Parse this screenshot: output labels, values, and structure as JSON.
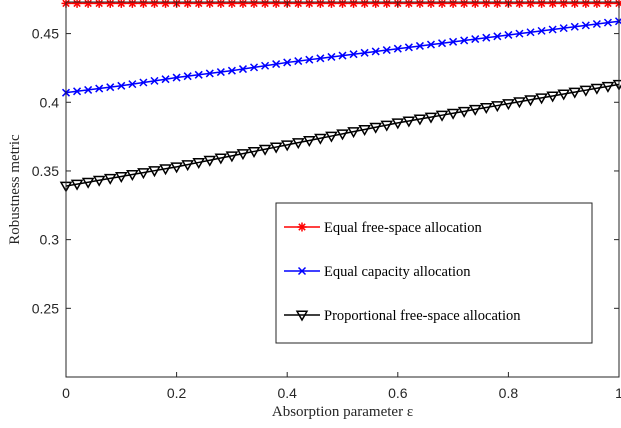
{
  "chart_data": {
    "type": "line",
    "title": "",
    "xlabel": "Absorption parameter ε",
    "ylabel": "Robustness metric",
    "xlim": [
      0,
      1
    ],
    "ylim": [
      0.2,
      0.473
    ],
    "x_ticks": [
      0,
      0.2,
      0.4,
      0.6,
      0.8,
      1
    ],
    "x_tick_labels": [
      "0",
      "0.2",
      "0.4",
      "0.6",
      "0.8",
      "1"
    ],
    "y_ticks": [
      0.25,
      0.3,
      0.35,
      0.4,
      0.45
    ],
    "y_tick_labels": [
      "0.25",
      "0.3",
      "0.35",
      "0.4",
      "0.45"
    ],
    "grid": false,
    "legend_position": "lower-right",
    "n_points": 51,
    "series": [
      {
        "name": "Equal free-space allocation",
        "color": "#ff0000",
        "marker": "asterisk",
        "x": [
          0,
          0.1,
          0.2,
          0.3,
          0.4,
          0.5,
          0.6,
          0.7,
          0.8,
          0.9,
          1.0
        ],
        "y": [
          0.472,
          0.472,
          0.472,
          0.472,
          0.472,
          0.472,
          0.472,
          0.472,
          0.472,
          0.472,
          0.472
        ]
      },
      {
        "name": "Equal capacity allocation",
        "color": "#0000ff",
        "marker": "x",
        "x": [
          0,
          0.1,
          0.2,
          0.3,
          0.4,
          0.5,
          0.6,
          0.7,
          0.8,
          0.9,
          1.0
        ],
        "y": [
          0.407,
          0.412,
          0.418,
          0.423,
          0.429,
          0.434,
          0.439,
          0.444,
          0.449,
          0.454,
          0.459
        ]
      },
      {
        "name": "Proportional free-space allocation",
        "color": "#000000",
        "marker": "triangle-down",
        "x": [
          0,
          0.1,
          0.2,
          0.3,
          0.4,
          0.5,
          0.6,
          0.7,
          0.8,
          0.9,
          1.0
        ],
        "y": [
          0.339,
          0.346,
          0.353,
          0.361,
          0.369,
          0.377,
          0.385,
          0.392,
          0.399,
          0.406,
          0.413
        ]
      }
    ]
  }
}
